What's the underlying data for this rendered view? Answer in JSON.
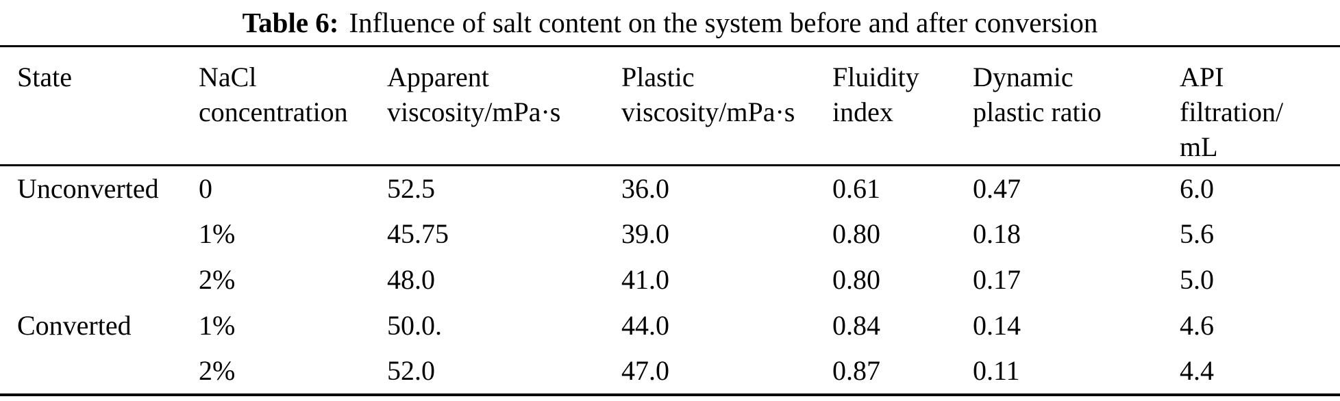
{
  "colors": {
    "background": "#ffffff",
    "text": "#000000",
    "rule": "#000000"
  },
  "caption": {
    "label": "Table 6:",
    "text": "Influence of salt content on the system before and after conversion"
  },
  "table": {
    "columns": [
      {
        "id": "state",
        "label": "State"
      },
      {
        "id": "nacl-concentration",
        "label": "NaCl\nconcentration"
      },
      {
        "id": "apparent-viscosity",
        "label": "Apparent\nviscosity/mPa·s"
      },
      {
        "id": "plastic-viscosity",
        "label": "Plastic\nviscosity/mPa·s"
      },
      {
        "id": "fluidity-index",
        "label": "Fluidity\nindex"
      },
      {
        "id": "dynamic-plastic-ratio",
        "label": "Dynamic\nplastic ratio"
      },
      {
        "id": "api-filtration",
        "label": "API\nfiltration/\nmL"
      }
    ],
    "rows": [
      {
        "cells": [
          "Unconverted",
          "0",
          "52.5",
          "36.0",
          "0.61",
          "0.47",
          "6.0"
        ]
      },
      {
        "cells": [
          "",
          "1%",
          "45.75",
          "39.0",
          "0.80",
          "0.18",
          "5.6"
        ]
      },
      {
        "cells": [
          "",
          "2%",
          "48.0",
          "41.0",
          "0.80",
          "0.17",
          "5.0"
        ]
      },
      {
        "cells": [
          "Converted",
          "1%",
          "50.0.",
          "44.0",
          "0.84",
          "0.14",
          "4.6"
        ]
      },
      {
        "cells": [
          "",
          "2%",
          "52.0",
          "47.0",
          "0.87",
          "0.11",
          "4.4"
        ]
      }
    ]
  }
}
